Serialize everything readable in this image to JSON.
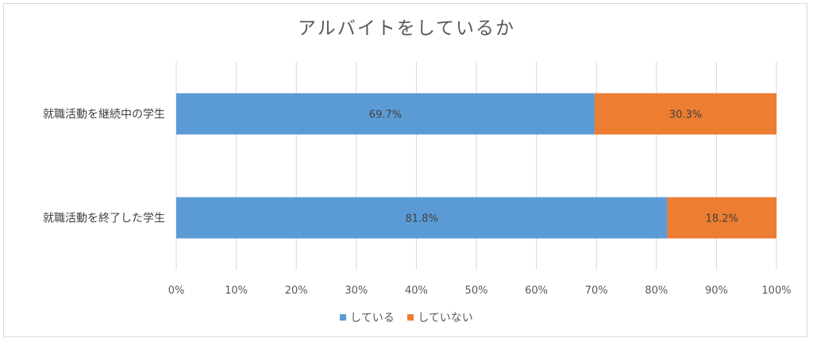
{
  "chart_data": {
    "type": "bar",
    "orientation": "horizontal",
    "stacked": true,
    "title": "アルバイトをしているか",
    "categories": [
      "就職活動を継続中の学生",
      "就職活動を終了した学生"
    ],
    "series": [
      {
        "name": "している",
        "values": [
          69.7,
          81.8
        ],
        "labels": [
          "69.7%",
          "81.8%"
        ],
        "color": "#5b9bd5"
      },
      {
        "name": "していない",
        "values": [
          30.3,
          18.2
        ],
        "labels": [
          "30.3%",
          "18.2%"
        ],
        "color": "#ed7d31"
      }
    ],
    "xlim": [
      0,
      100
    ],
    "xticks": [
      "0%",
      "10%",
      "20%",
      "30%",
      "40%",
      "50%",
      "60%",
      "70%",
      "80%",
      "90%",
      "100%"
    ],
    "grid": true,
    "legend": "bottom"
  }
}
